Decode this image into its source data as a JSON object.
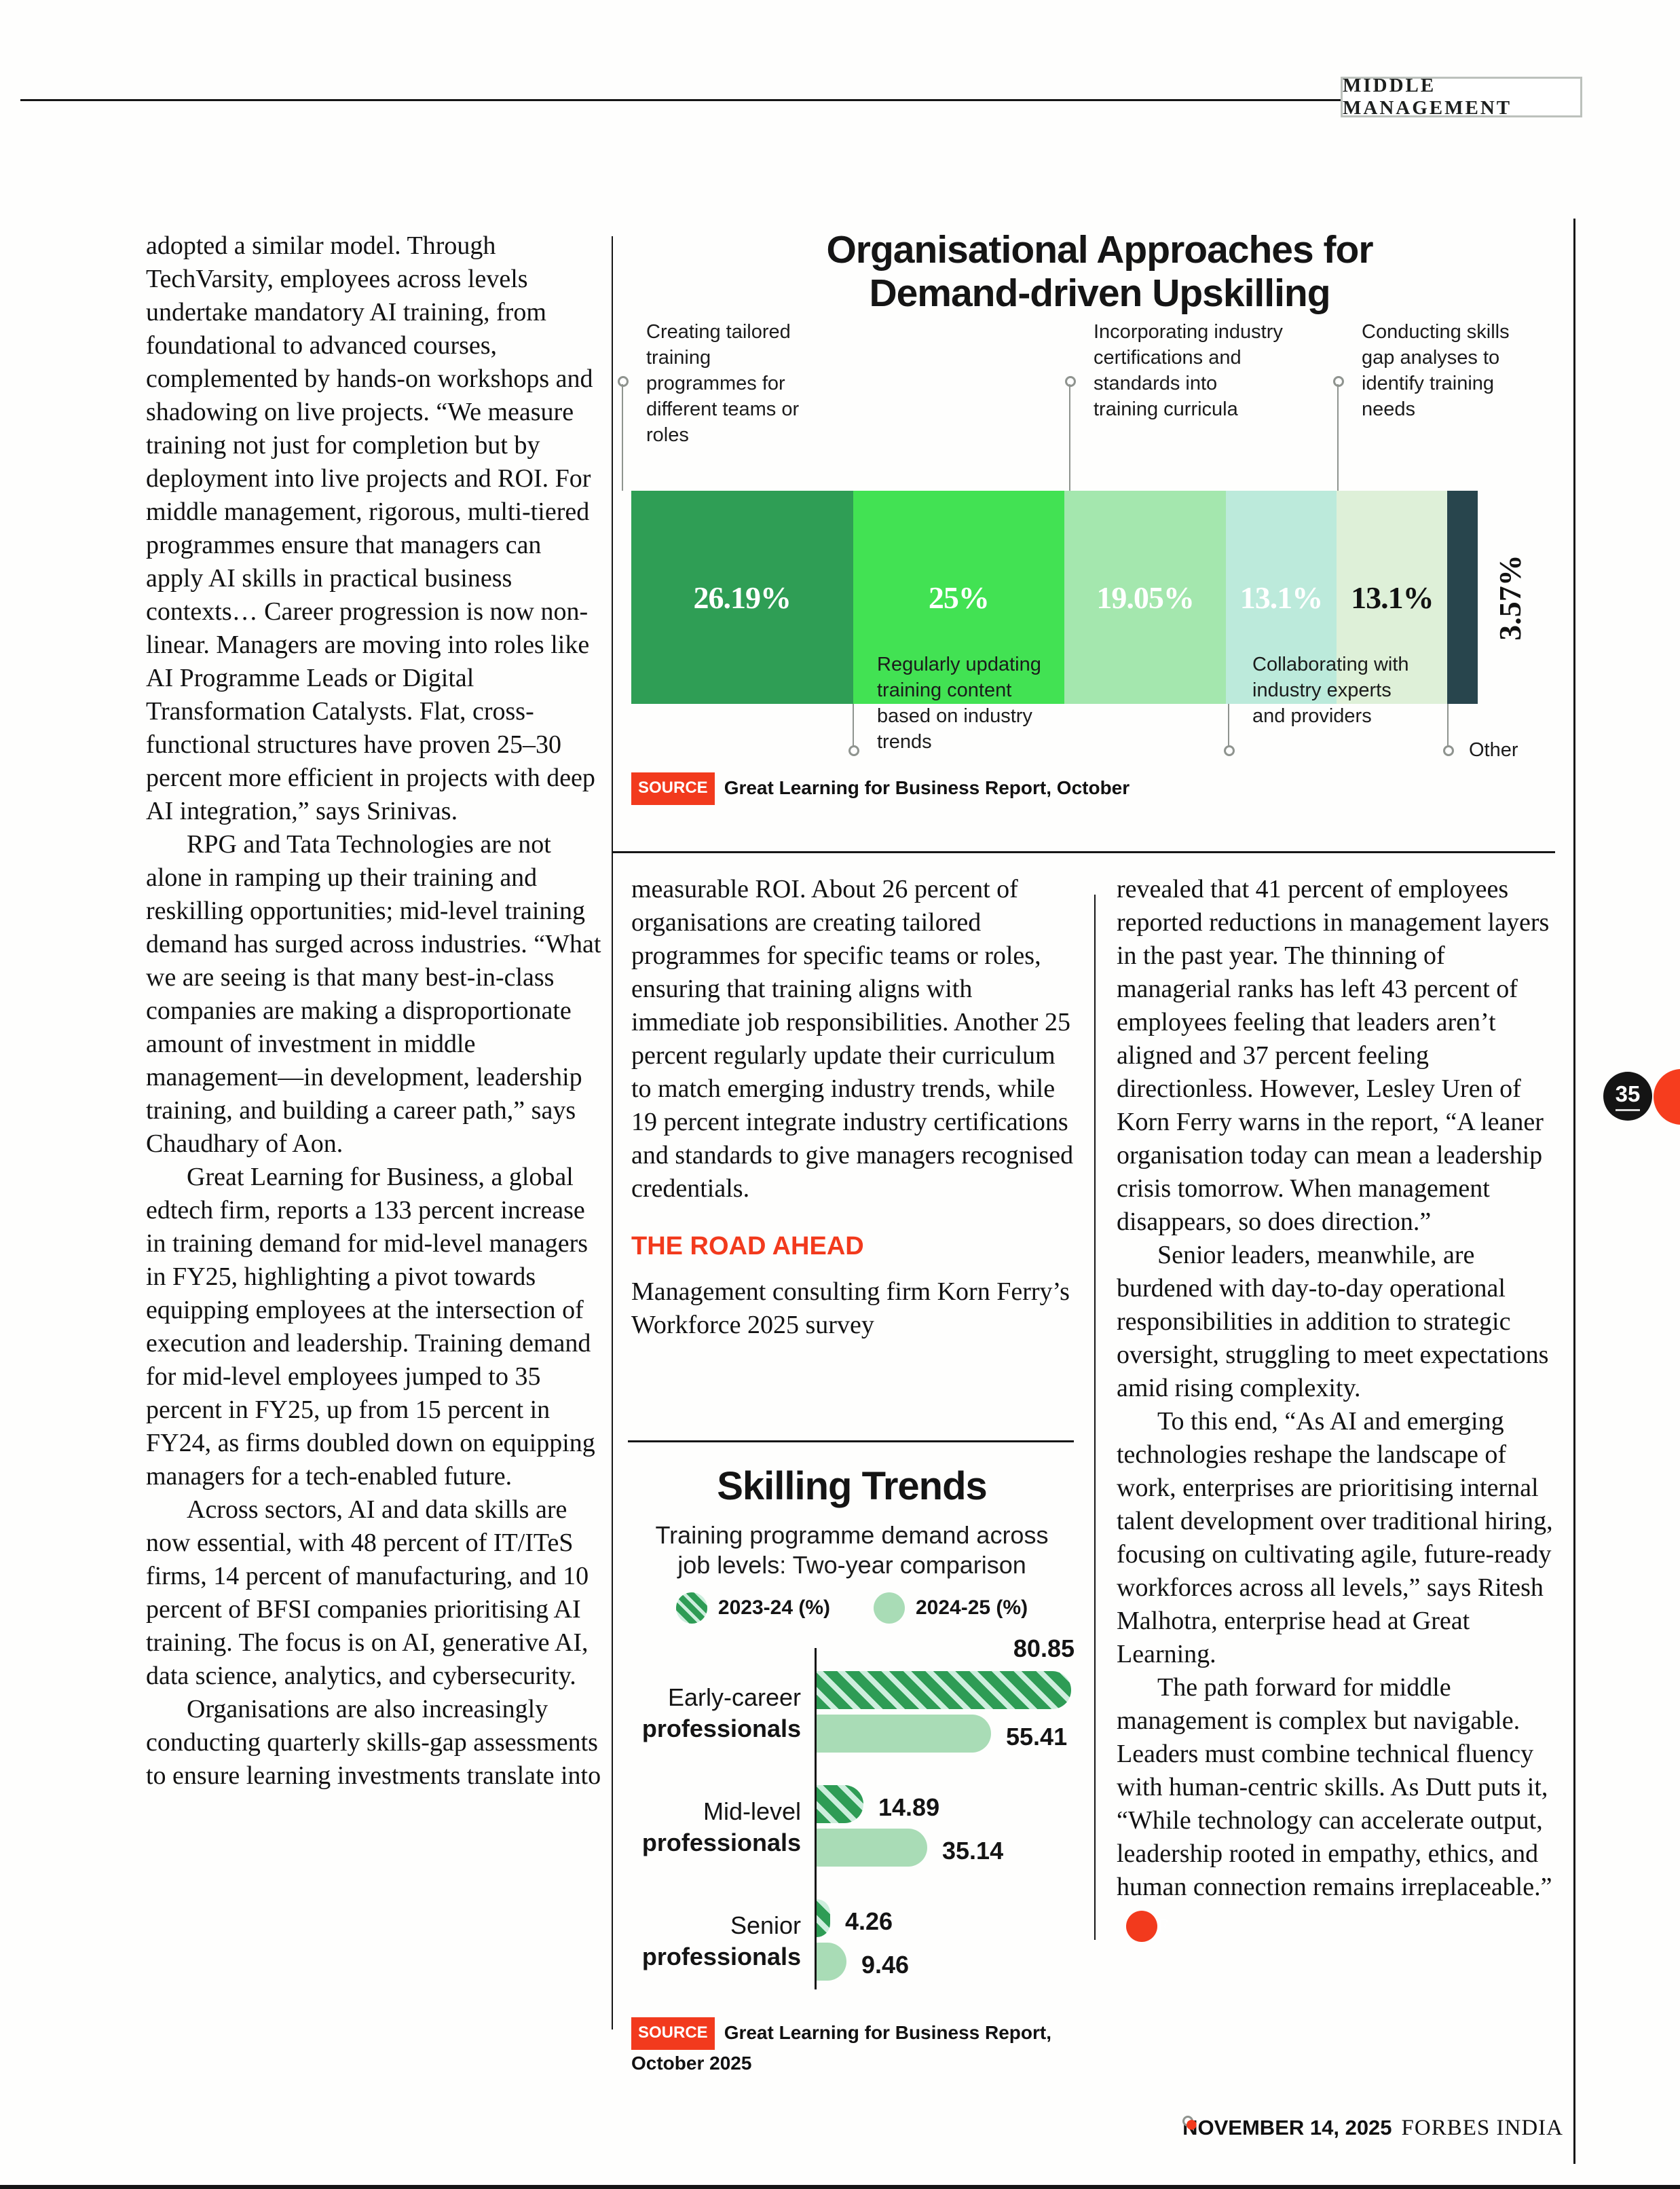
{
  "header": {
    "section_label": "MIDDLE MANAGEMENT"
  },
  "page": {
    "number": "35",
    "end_mark": "F",
    "footer_date": "NOVEMBER 14, 2025",
    "footer_brand": "FORBES INDIA"
  },
  "article": {
    "col1": [
      "adopted a similar model. Through TechVarsity, employees across levels undertake mandatory AI training, from foundational to advanced courses, complemented by hands-on workshops and shadowing on live projects. “We measure training not just for completion but by deployment into live projects and ROI. For middle management, rigorous, multi-tiered programmes ensure that managers can apply AI skills in practical business contexts… Career progression is now non-linear. Managers are moving into roles like AI Programme Leads or Digital Transformation Catalysts. Flat, cross-functional structures have proven 25–30 percent more efficient in projects with deep AI integration,” says Srinivas.",
      "RPG and Tata Technologies are not alone in ramping up their training and reskilling opportunities; mid-level training demand has surged across industries. “What we are seeing is that many best-in-class companies are making a disproportionate amount of investment in middle management—in development, leadership training, and building a career path,” says Chaudhary of Aon.",
      "Great Learning for Business, a global edtech firm, reports a 133 percent increase in training demand for mid-level managers in FY25, highlighting a pivot towards equipping employees at the intersection of execution and leadership. Training demand for mid-level employees jumped to 35 percent in FY25, up from 15 percent in FY24, as firms doubled down on equipping managers for a tech-enabled future.",
      "Across sectors, AI and data skills are now essential, with 48 percent of IT/ITeS firms, 14 percent of manufacturing, and 10 percent of BFSI companies prioritising AI training. The focus is on AI, generative AI, data science, analytics, and cybersecurity.",
      "Organisations are also increasingly conducting quarterly skills-gap assessments to ensure learning investments translate into"
    ],
    "col2_top": "measurable ROI. About 26 percent of organisations are creating tailored programmes for specific teams or roles, ensuring that training aligns with immediate job responsibilities. Another 25 percent regularly update their curriculum to match emerging industry trends, while 19 percent integrate industry certifications and standards to give managers recognised credentials.",
    "road_ahead_heading": "THE ROAD AHEAD",
    "col2_after_heading": "Management consulting firm Korn Ferry’s Workforce 2025 survey",
    "col3": [
      "revealed that 41 percent of employees reported reductions in management layers in the past year. The thinning of managerial ranks has left 43 percent of employees feeling that leaders aren’t aligned and 37 percent feeling directionless. However, Lesley Uren of Korn Ferry warns in the report, “A leaner organisation today can mean a leadership crisis tomorrow. When management disappears, so does direction.”",
      "Senior leaders, meanwhile, are burdened with day-to-day operational responsibilities in addition to strategic oversight, struggling to meet expectations amid rising complexity.",
      "To this end, “As AI and emerging technologies reshape the landscape of work, enterprises are prioritising internal talent development over traditional hiring, focusing on cultivating agile, future-ready workforces across all levels,” says Ritesh Malhotra, enterprise head at Great Learning.",
      "The path forward for middle management is complex but navigable. Leaders must combine technical fluency with human-centric skills. As Dutt puts it, “While technology can accelerate output, leadership rooted in empathy, ethics, and human connection remains irreplaceable.”"
    ]
  },
  "chart_data": [
    {
      "type": "bar",
      "variant": "stacked-horizontal-single-bar",
      "title": "Organisational Approaches for Demand-driven Upskilling",
      "unit": "%",
      "segments": [
        {
          "label": "Creating tailored training programmes for different teams or roles",
          "value": 26.19,
          "value_label": "26.19%",
          "color": "#2f9e55",
          "text_color": "#ffffff",
          "callout": "top"
        },
        {
          "label": "Regularly updating training content based on industry trends",
          "value": 25,
          "value_label": "25%",
          "color": "#42e253",
          "text_color": "#ffffff",
          "callout": "bottom"
        },
        {
          "label": "Incorporating industry certifications and standards into training curricula",
          "value": 19.05,
          "value_label": "19.05%",
          "color": "#a4e7ae",
          "text_color": "#ffffff",
          "callout": "top"
        },
        {
          "label": "Collaborating with industry experts and providers",
          "value": 13.1,
          "value_label": "13.1%",
          "color": "#bceadb",
          "text_color": "#ffffff",
          "callout": "bottom"
        },
        {
          "label": "Conducting skills gap analyses to identify training needs",
          "value": 13.1,
          "value_label": "13.1%",
          "color": "#def0d8",
          "text_color": "#121212",
          "callout": "top"
        },
        {
          "label": "Other",
          "value": 3.57,
          "value_label": "3.57%",
          "color": "#28454d",
          "text_color": "#121212",
          "callout": "bottom",
          "value_label_outside": true
        }
      ],
      "legend_position": "callouts",
      "source_label": "SOURCE",
      "source": "Great Learning for Business Report, October"
    },
    {
      "type": "bar",
      "variant": "grouped-horizontal",
      "title": "Skilling Trends",
      "subtitle": "Training programme demand across job levels: Two-year comparison",
      "categories": [
        "Early-career professionals",
        "Mid-level professionals",
        "Senior professionals"
      ],
      "categories_lines": [
        [
          "Early-career",
          "professionals"
        ],
        [
          "Mid-level",
          "professionals"
        ],
        [
          "Senior",
          "professionals"
        ]
      ],
      "series": [
        {
          "name": "2023-24 (%)",
          "values": [
            80.85,
            14.89,
            4.26
          ],
          "style": "hatched",
          "color": "#2e9c55"
        },
        {
          "name": "2024-25 (%)",
          "values": [
            55.41,
            35.14,
            9.46
          ],
          "style": "solid",
          "color": "#a9dcb6"
        }
      ],
      "xlim": [
        0,
        85
      ],
      "grid": false,
      "legend_position": "top-center",
      "source_label": "SOURCE",
      "source": "Great Learning for Business Report, October 2025"
    }
  ]
}
